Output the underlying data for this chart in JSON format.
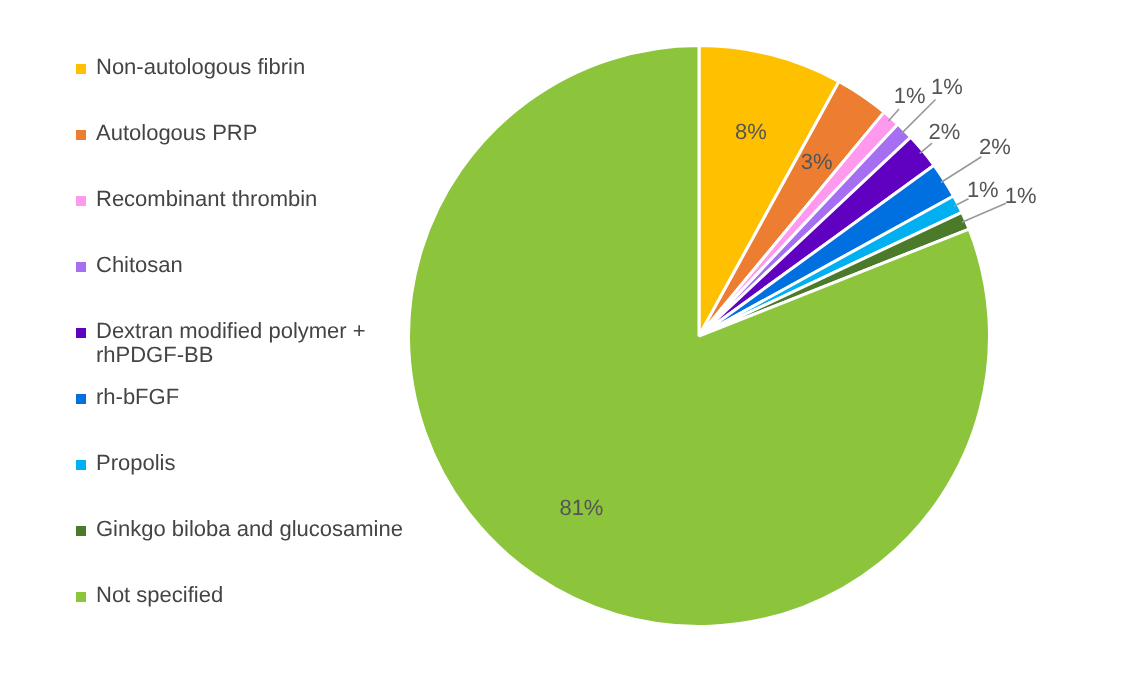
{
  "chart_data": {
    "type": "pie",
    "categories": [
      "Non-autologous fibrin",
      "Autologous PRP",
      "Recombinant thrombin",
      "Chitosan",
      "Dextran modified polymer + rhPDGF-BB",
      "rh-bFGF",
      "Propolis",
      "Ginkgo biloba and glucosamine",
      "Not specified"
    ],
    "values": [
      8,
      3,
      1,
      1,
      2,
      2,
      1,
      1,
      81
    ],
    "colors": [
      "#ffc000",
      "#ed7d31",
      "#ff99ee",
      "#a66ef0",
      "#6000c0",
      "#0070e0",
      "#00b0f0",
      "#4a7a2a",
      "#8cc43c"
    ],
    "value_labels": [
      "8%",
      "3%",
      "1%",
      "1%",
      "2%",
      "2%",
      "1%",
      "1%",
      "81%"
    ],
    "legend": "left"
  }
}
